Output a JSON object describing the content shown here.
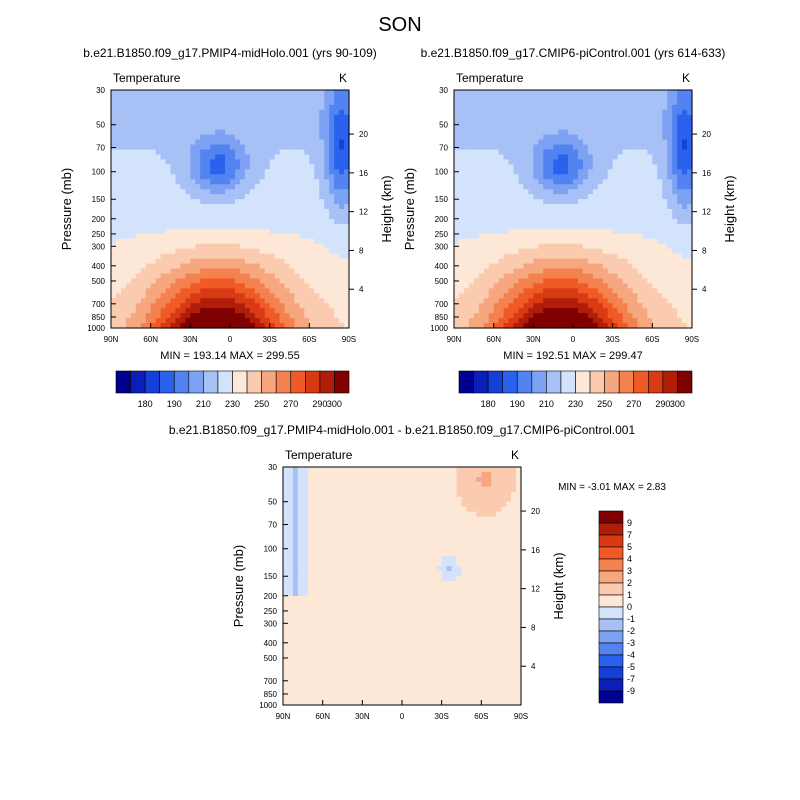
{
  "figure": {
    "title": "SON"
  },
  "chart_data": [
    {
      "type": "heatmap",
      "title": "b.e21.B1850.f09_g17.PMIP4-midHolo.001 (yrs 90-109)",
      "variable_label": "Temperature",
      "units": "K",
      "xlabel": "",
      "ylabel": "Pressure (mb)",
      "ylabel_right": "Height (km)",
      "x_ticks": [
        "90N",
        "60N",
        "30N",
        "0",
        "30S",
        "60S",
        "90S"
      ],
      "y_ticks": [
        "30",
        "50",
        "70",
        "100",
        "150",
        "200",
        "250",
        "300",
        "400",
        "500",
        "700",
        "850",
        "1000"
      ],
      "right_ticks": [
        "20",
        "16",
        "12",
        "8",
        "4"
      ],
      "y_scale": "log",
      "ylim": [
        1000,
        30
      ],
      "stats": "MIN = 193.14  MAX = 299.55",
      "colorbar": {
        "orientation": "horizontal",
        "tick_labels": [
          "180",
          "190",
          "210",
          "230",
          "250",
          "270",
          "290",
          "300"
        ],
        "colors": [
          "#000090",
          "#0a1fb8",
          "#1540d8",
          "#2a62ee",
          "#5383f1",
          "#7ea2f3",
          "#a7c0f5",
          "#d3e3fb",
          "#fde8d8",
          "#fbcbb0",
          "#f7a77f",
          "#f4824f",
          "#ef5a26",
          "#d83a14",
          "#b01e0a",
          "#7e0000"
        ]
      }
    },
    {
      "type": "heatmap",
      "title": "b.e21.B1850.f09_g17.CMIP6-piControl.001 (yrs 614-633)",
      "variable_label": "Temperature",
      "units": "K",
      "xlabel": "",
      "ylabel": "Pressure (mb)",
      "ylabel_right": "Height (km)",
      "x_ticks": [
        "90N",
        "60N",
        "30N",
        "0",
        "30S",
        "60S",
        "90S"
      ],
      "y_ticks": [
        "30",
        "50",
        "70",
        "100",
        "150",
        "200",
        "250",
        "300",
        "400",
        "500",
        "700",
        "850",
        "1000"
      ],
      "right_ticks": [
        "20",
        "16",
        "12",
        "8",
        "4"
      ],
      "y_scale": "log",
      "ylim": [
        1000,
        30
      ],
      "stats": "MIN = 192.51  MAX = 299.47",
      "colorbar": {
        "orientation": "horizontal",
        "tick_labels": [
          "180",
          "190",
          "210",
          "230",
          "250",
          "270",
          "290",
          "300"
        ],
        "colors": [
          "#000090",
          "#0a1fb8",
          "#1540d8",
          "#2a62ee",
          "#5383f1",
          "#7ea2f3",
          "#a7c0f5",
          "#d3e3fb",
          "#fde8d8",
          "#fbcbb0",
          "#f7a77f",
          "#f4824f",
          "#ef5a26",
          "#d83a14",
          "#b01e0a",
          "#7e0000"
        ]
      }
    },
    {
      "type": "heatmap",
      "title": "b.e21.B1850.f09_g17.PMIP4-midHolo.001 - b.e21.B1850.f09_g17.CMIP6-piControl.001",
      "variable_label": "Temperature",
      "units": "K",
      "xlabel": "",
      "ylabel": "Pressure (mb)",
      "ylabel_right": "Height (km)",
      "x_ticks": [
        "90N",
        "60N",
        "30N",
        "0",
        "30S",
        "60S",
        "90S"
      ],
      "y_ticks": [
        "30",
        "50",
        "70",
        "100",
        "150",
        "200",
        "250",
        "300",
        "400",
        "500",
        "700",
        "850",
        "1000"
      ],
      "right_ticks": [
        "20",
        "16",
        "12",
        "8",
        "4"
      ],
      "y_scale": "log",
      "ylim": [
        1000,
        30
      ],
      "stats": "MIN =  -3.01  MAX =   2.83",
      "colorbar": {
        "orientation": "vertical",
        "tick_labels": [
          "9",
          "7",
          "5",
          "4",
          "3",
          "2",
          "1",
          "0",
          "-1",
          "-2",
          "-3",
          "-4",
          "-5",
          "-7",
          "-9"
        ],
        "colors": [
          "#7e0000",
          "#b01e0a",
          "#d83a14",
          "#ef5a26",
          "#f4824f",
          "#f7a77f",
          "#fbcbb0",
          "#fde8d8",
          "#d3e3fb",
          "#a7c0f5",
          "#7ea2f3",
          "#5383f1",
          "#2a62ee",
          "#1540d8",
          "#0a1fb8",
          "#000090"
        ]
      }
    }
  ]
}
